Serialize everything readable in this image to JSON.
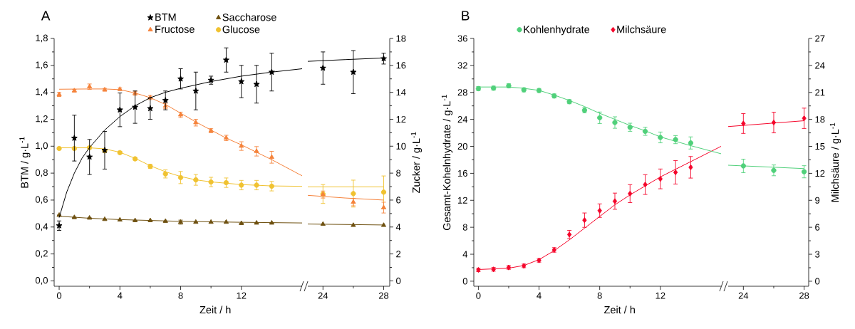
{
  "chart_data": [
    {
      "type": "scatter",
      "title": "A",
      "xlabel": "Zeit / h",
      "ylabel": "BTM / g·L$^{-1}$",
      "xlim": [
        -0.33,
        16
      ],
      "xticks": [
        0,
        4,
        8,
        12
      ],
      "ylim": [
        -0.04,
        1.8
      ],
      "yticks": [
        {
          "value": 0,
          "label": "0,0"
        },
        {
          "value": 0.2,
          "label": "0,2"
        },
        {
          "value": 0.4,
          "label": "0,4"
        },
        {
          "value": 0.6,
          "label": "0,6"
        },
        {
          "value": 0.8,
          "label": "0,8"
        },
        {
          "value": 1.0,
          "label": "1,0"
        },
        {
          "value": 1.2,
          "label": "1,2"
        },
        {
          "value": 1.4,
          "label": "1,4"
        },
        {
          "value": 1.6,
          "label": "1,6"
        },
        {
          "value": 1.8,
          "label": "1,8"
        }
      ],
      "y2lim": [
        -0.4,
        18
      ],
      "tick_labels": "xy",
      "legend": "top",
      "series": [
        {
          "name": "BTM",
          "marker": "star",
          "color": "#000000",
          "x": [
            0,
            1,
            2,
            3,
            4,
            5,
            6,
            7,
            8,
            9,
            10,
            11,
            12,
            13,
            14
          ],
          "values": [
            0.41,
            1.06,
            0.92,
            0.97,
            1.27,
            1.29,
            1.28,
            1.34,
            1.5,
            1.41,
            1.49,
            1.64,
            1.48,
            1.46,
            1.55
          ],
          "errors": [
            0.035,
            0.17,
            0.13,
            0.14,
            0.125,
            0.12,
            0.08,
            0.07,
            0.075,
            0.14,
            0.03,
            0.09,
            0.12,
            0.14,
            0.14
          ]
        },
        {
          "name": "Saccharose",
          "marker": "triangle",
          "axis": "y2",
          "color": "#6e5010",
          "x": [
            0,
            1,
            2,
            3,
            4,
            5,
            6,
            7,
            8,
            9,
            10,
            11,
            12,
            13,
            14
          ],
          "values": [
            4.88,
            4.71,
            4.67,
            4.57,
            4.53,
            4.48,
            4.48,
            4.43,
            4.36,
            4.36,
            4.36,
            4.36,
            4.27,
            4.3,
            4.3
          ],
          "errors": [
            null,
            null,
            null,
            null,
            null,
            null,
            null,
            null,
            0.15,
            null,
            null,
            null,
            null,
            null,
            null
          ]
        },
        {
          "name": "Fructose",
          "marker": "triangle",
          "axis": "y2",
          "color": "#f5823a",
          "x": [
            0,
            1,
            2,
            3,
            4,
            5,
            6,
            7,
            8,
            9,
            10,
            11,
            12,
            13,
            14
          ],
          "values": [
            13.84,
            14.12,
            14.42,
            14.19,
            14.23,
            13.93,
            13.61,
            12.98,
            12.33,
            11.75,
            11.15,
            10.61,
            10.01,
            9.62,
            9.18
          ],
          "errors": [
            0.15,
            0.1,
            0.2,
            0.1,
            0.1,
            0.15,
            0.15,
            0.2,
            0.2,
            0.25,
            0.15,
            0.2,
            0.32,
            0.35,
            0.44
          ]
        },
        {
          "name": "Glucose",
          "marker": "circle",
          "axis": "y2",
          "color": "#f0c230",
          "x": [
            0,
            1,
            2,
            3,
            4,
            5,
            6,
            7,
            8,
            9,
            10,
            11,
            12,
            13,
            14
          ],
          "values": [
            9.83,
            9.83,
            9.89,
            9.66,
            9.52,
            9.06,
            8.5,
            7.94,
            7.67,
            7.5,
            7.34,
            7.29,
            7.11,
            7.11,
            7.03
          ],
          "errors": [
            0.1,
            0.1,
            0.1,
            0.1,
            0.1,
            0.1,
            0.15,
            0.3,
            0.45,
            0.4,
            0.35,
            0.35,
            0.35,
            0.35,
            0.35
          ]
        },
        {
          "type": "line",
          "color": "#000000",
          "x": [
            0,
            0.5,
            1,
            1.5,
            2,
            3,
            4,
            5,
            6,
            7,
            8,
            10,
            12,
            14,
            16
          ],
          "values": [
            0.47,
            0.66,
            0.8,
            0.91,
            0.99,
            1.12,
            1.22,
            1.3,
            1.36,
            1.4,
            1.43,
            1.48,
            1.52,
            1.55,
            1.575
          ]
        },
        {
          "type": "line",
          "axis": "y2",
          "color": "#6e5010",
          "x": [
            0,
            2,
            4,
            8,
            12,
            16
          ],
          "values": [
            4.8,
            4.65,
            4.55,
            4.42,
            4.35,
            4.3
          ]
        },
        {
          "type": "line",
          "axis": "y2",
          "color": "#f5823a",
          "x": [
            0,
            2,
            3,
            4,
            5,
            6,
            7,
            8,
            9,
            10,
            11,
            12,
            14,
            16
          ],
          "values": [
            14.23,
            14.25,
            14.25,
            14.2,
            13.95,
            13.6,
            13.1,
            12.45,
            11.8,
            11.2,
            10.6,
            10.1,
            9.0,
            7.8
          ]
        },
        {
          "type": "line",
          "axis": "y2",
          "color": "#f0c230",
          "x": [
            0,
            2,
            3,
            4,
            5,
            6,
            7,
            8,
            9,
            10,
            12,
            14,
            16
          ],
          "values": [
            9.88,
            9.88,
            9.8,
            9.55,
            9.1,
            8.55,
            8.1,
            7.75,
            7.5,
            7.35,
            7.15,
            7.05,
            7.02
          ]
        }
      ]
    },
    {
      "type": "scatter",
      "y2label": "Zucker / g·L$^{-1}$",
      "xlim": [
        23,
        28.4
      ],
      "xticks": [
        24,
        28
      ],
      "ylim": [
        -0.04,
        1.8
      ],
      "y2lim": [
        -0.4,
        18
      ],
      "y2ticks": [
        0,
        2,
        4,
        6,
        8,
        10,
        12,
        14,
        16,
        18
      ],
      "tick_labels": "xy2",
      "series": [
        {
          "marker": "star",
          "color": "#000000",
          "x": [
            24,
            26,
            28
          ],
          "values": [
            1.58,
            1.55,
            1.65
          ],
          "errors": [
            0.12,
            0.16,
            0.04
          ]
        },
        {
          "marker": "triangle",
          "axis": "y2",
          "color": "#6e5010",
          "x": [
            24,
            26,
            28
          ],
          "values": [
            4.21,
            4.13,
            4.13
          ]
        },
        {
          "marker": "circle",
          "axis": "y2",
          "color": "#f0c230",
          "x": [
            24,
            26,
            28
          ],
          "values": [
            6.45,
            6.48,
            6.59
          ],
          "errors": [
            0.7,
            1.0,
            1.2
          ]
        },
        {
          "marker": "triangle",
          "axis": "y2",
          "color": "#f5823a",
          "x": [
            24,
            26,
            28
          ],
          "values": [
            6.41,
            5.85,
            5.44
          ],
          "errors": [
            0.26,
            0.28,
            0.4
          ]
        },
        {
          "type": "line",
          "color": "#000000",
          "x": [
            23,
            25.5,
            28
          ],
          "values": [
            1.63,
            1.643,
            1.655
          ]
        },
        {
          "type": "line",
          "axis": "y2",
          "color": "#6e5010",
          "x": [
            23,
            28
          ],
          "values": [
            4.22,
            4.15
          ]
        },
        {
          "type": "line",
          "axis": "y2",
          "color": "#f5823a",
          "x": [
            23,
            25.5,
            28
          ],
          "values": [
            6.35,
            6.15,
            6.0
          ]
        },
        {
          "type": "line",
          "axis": "y2",
          "color": "#f0c230",
          "x": [
            23,
            28
          ],
          "values": [
            6.98,
            6.98
          ]
        }
      ]
    },
    {
      "type": "scatter",
      "title": "B",
      "xlabel": "Zeit / h",
      "ylabel": "Gesamt-Kohelnhydrate / g·L$^{-1}$",
      "xlim": [
        -0.3,
        16
      ],
      "xticks": [
        0,
        4,
        8,
        12
      ],
      "ylim": [
        -0.75,
        36
      ],
      "yticks": [
        0,
        4,
        8,
        12,
        16,
        20,
        24,
        28,
        32,
        36
      ],
      "y2lim": [
        -0.56,
        27
      ],
      "tick_labels": "xy",
      "legend": "top",
      "series": [
        {
          "name": "Kohlenhydrate",
          "marker": "circle",
          "color": "#50d07a",
          "x": [
            0,
            1,
            2,
            3,
            4,
            5,
            6,
            7,
            8,
            9,
            10,
            11,
            12,
            13,
            14
          ],
          "values": [
            28.56,
            28.63,
            28.98,
            28.38,
            28.28,
            27.47,
            26.62,
            25.36,
            24.24,
            23.53,
            22.83,
            22.23,
            21.32,
            21.0,
            20.5
          ],
          "errors": [
            0.3,
            0.3,
            0.3,
            0.3,
            0.3,
            0.3,
            0.3,
            0.4,
            0.85,
            0.85,
            0.6,
            0.6,
            0.8,
            0.6,
            0.9
          ]
        },
        {
          "name": "Milchsäure",
          "marker": "diamond",
          "axis": "y2",
          "color": "#f5052a",
          "x": [
            0,
            1,
            2,
            3,
            4,
            5,
            6,
            7,
            8,
            9,
            10,
            11,
            12,
            13,
            14
          ],
          "values": [
            1.26,
            1.32,
            1.53,
            1.71,
            2.32,
            3.48,
            5.19,
            6.79,
            7.85,
            8.9,
            9.74,
            10.75,
            11.38,
            12.11,
            12.67
          ],
          "errors": [
            0.2,
            0.2,
            0.2,
            0.2,
            0.2,
            0.25,
            0.46,
            0.8,
            0.75,
            0.9,
            1.0,
            1.1,
            1.1,
            1.3,
            1.2
          ]
        },
        {
          "type": "line",
          "color": "#50d07a",
          "x": [
            0,
            2,
            3,
            4,
            5,
            6,
            7,
            8,
            9,
            10,
            11,
            12,
            14,
            16
          ],
          "values": [
            28.8,
            28.8,
            28.6,
            28.3,
            27.6,
            26.8,
            25.9,
            24.9,
            24.0,
            23.1,
            22.3,
            21.4,
            20.1,
            18.9
          ]
        },
        {
          "type": "line",
          "axis": "y2",
          "color": "#f5052a",
          "x": [
            0,
            2,
            3,
            4,
            5,
            6,
            7,
            8,
            9,
            10,
            11,
            12,
            14,
            16
          ],
          "values": [
            1.3,
            1.45,
            1.75,
            2.4,
            3.4,
            4.6,
            5.9,
            7.2,
            8.5,
            9.6,
            10.6,
            11.6,
            13.3,
            15.0
          ]
        }
      ]
    },
    {
      "type": "scatter",
      "y2label": "Milchsäure / g·L$^{-1}$",
      "xlim": [
        23,
        28.3
      ],
      "xticks": [
        24,
        28
      ],
      "ylim": [
        -0.75,
        36
      ],
      "y2lim": [
        -0.56,
        27
      ],
      "y2ticks": [
        0,
        3,
        6,
        9,
        12,
        15,
        18,
        21,
        24,
        27
      ],
      "tick_labels": "xy2",
      "series": [
        {
          "marker": "circle",
          "color": "#50d07a",
          "x": [
            24,
            26,
            28
          ],
          "values": [
            17.1,
            16.44,
            16.23
          ],
          "errors": [
            1.0,
            0.8,
            0.9
          ]
        },
        {
          "marker": "diamond",
          "axis": "y2",
          "color": "#f5052a",
          "x": [
            24,
            26,
            28
          ],
          "values": [
            17.54,
            17.65,
            18.12
          ],
          "errors": [
            1.1,
            1.15,
            1.13
          ]
        },
        {
          "type": "line",
          "color": "#50d07a",
          "x": [
            23,
            28
          ],
          "values": [
            17.2,
            16.7
          ]
        },
        {
          "type": "line",
          "axis": "y2",
          "color": "#f5052a",
          "x": [
            23,
            28
          ],
          "values": [
            17.2,
            17.85
          ]
        }
      ]
    }
  ]
}
